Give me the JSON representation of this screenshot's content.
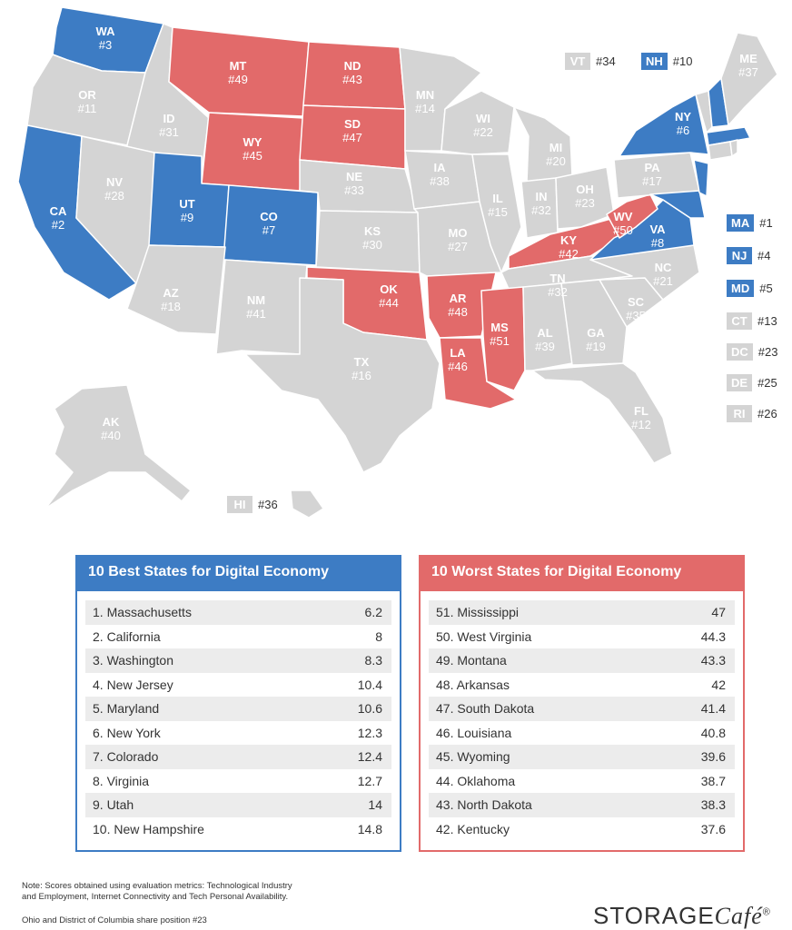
{
  "colors": {
    "best": "#3d7cc4",
    "worst": "#e26a6a",
    "neutral": "#d4d4d4"
  },
  "map": {
    "states": [
      {
        "abbr": "WA",
        "rank": "#3",
        "group": "best"
      },
      {
        "abbr": "OR",
        "rank": "#11",
        "group": "neutral"
      },
      {
        "abbr": "CA",
        "rank": "#2",
        "group": "best"
      },
      {
        "abbr": "ID",
        "rank": "#31",
        "group": "neutral"
      },
      {
        "abbr": "NV",
        "rank": "#28",
        "group": "neutral"
      },
      {
        "abbr": "MT",
        "rank": "#49",
        "group": "worst"
      },
      {
        "abbr": "WY",
        "rank": "#45",
        "group": "worst"
      },
      {
        "abbr": "UT",
        "rank": "#9",
        "group": "best"
      },
      {
        "abbr": "CO",
        "rank": "#7",
        "group": "best"
      },
      {
        "abbr": "AZ",
        "rank": "#18",
        "group": "neutral"
      },
      {
        "abbr": "NM",
        "rank": "#41",
        "group": "neutral"
      },
      {
        "abbr": "ND",
        "rank": "#43",
        "group": "worst"
      },
      {
        "abbr": "SD",
        "rank": "#47",
        "group": "worst"
      },
      {
        "abbr": "NE",
        "rank": "#33",
        "group": "neutral"
      },
      {
        "abbr": "KS",
        "rank": "#30",
        "group": "neutral"
      },
      {
        "abbr": "OK",
        "rank": "#44",
        "group": "worst"
      },
      {
        "abbr": "TX",
        "rank": "#16",
        "group": "neutral"
      },
      {
        "abbr": "MN",
        "rank": "#14",
        "group": "neutral"
      },
      {
        "abbr": "IA",
        "rank": "#38",
        "group": "neutral"
      },
      {
        "abbr": "MO",
        "rank": "#27",
        "group": "neutral"
      },
      {
        "abbr": "AR",
        "rank": "#48",
        "group": "worst"
      },
      {
        "abbr": "LA",
        "rank": "#46",
        "group": "worst"
      },
      {
        "abbr": "WI",
        "rank": "#22",
        "group": "neutral"
      },
      {
        "abbr": "IL",
        "rank": "#15",
        "group": "neutral"
      },
      {
        "abbr": "MI",
        "rank": "#20",
        "group": "neutral"
      },
      {
        "abbr": "IN",
        "rank": "#32",
        "group": "neutral"
      },
      {
        "abbr": "OH",
        "rank": "#23",
        "group": "neutral"
      },
      {
        "abbr": "KY",
        "rank": "#42",
        "group": "worst"
      },
      {
        "abbr": "TN",
        "rank": "#32",
        "group": "neutral"
      },
      {
        "abbr": "MS",
        "rank": "#51",
        "group": "worst"
      },
      {
        "abbr": "AL",
        "rank": "#39",
        "group": "neutral"
      },
      {
        "abbr": "GA",
        "rank": "#19",
        "group": "neutral"
      },
      {
        "abbr": "FL",
        "rank": "#12",
        "group": "neutral"
      },
      {
        "abbr": "SC",
        "rank": "#35",
        "group": "neutral"
      },
      {
        "abbr": "NC",
        "rank": "#21",
        "group": "neutral"
      },
      {
        "abbr": "VA",
        "rank": "#8",
        "group": "best"
      },
      {
        "abbr": "WV",
        "rank": "#50",
        "group": "worst"
      },
      {
        "abbr": "PA",
        "rank": "#17",
        "group": "neutral"
      },
      {
        "abbr": "NY",
        "rank": "#6",
        "group": "best"
      },
      {
        "abbr": "ME",
        "rank": "#37",
        "group": "neutral"
      },
      {
        "abbr": "AK",
        "rank": "#40",
        "group": "neutral"
      }
    ],
    "badges": [
      {
        "abbr": "VT",
        "rank": "#34",
        "group": "neutral"
      },
      {
        "abbr": "NH",
        "rank": "#10",
        "group": "best"
      },
      {
        "abbr": "MA",
        "rank": "#1",
        "group": "best"
      },
      {
        "abbr": "NJ",
        "rank": "#4",
        "group": "best"
      },
      {
        "abbr": "MD",
        "rank": "#5",
        "group": "best"
      },
      {
        "abbr": "CT",
        "rank": "#13",
        "group": "neutral"
      },
      {
        "abbr": "DC",
        "rank": "#23",
        "group": "neutral"
      },
      {
        "abbr": "DE",
        "rank": "#25",
        "group": "neutral"
      },
      {
        "abbr": "RI",
        "rank": "#26",
        "group": "neutral"
      },
      {
        "abbr": "HI",
        "rank": "#36",
        "group": "neutral"
      }
    ]
  },
  "best_table": {
    "title": "10 Best States for Digital Economy",
    "rows": [
      {
        "name": "1. Massachusetts",
        "score": "6.2"
      },
      {
        "name": "2. California",
        "score": "8"
      },
      {
        "name": "3. Washington",
        "score": "8.3"
      },
      {
        "name": "4. New Jersey",
        "score": "10.4"
      },
      {
        "name": "5. Maryland",
        "score": "10.6"
      },
      {
        "name": "6. New York",
        "score": "12.3"
      },
      {
        "name": "7. Colorado",
        "score": "12.4"
      },
      {
        "name": "8. Virginia",
        "score": "12.7"
      },
      {
        "name": "9. Utah",
        "score": "14"
      },
      {
        "name": "10. New Hampshire",
        "score": "14.8"
      }
    ]
  },
  "worst_table": {
    "title": "10 Worst States for Digital Economy",
    "rows": [
      {
        "name": "51. Mississippi",
        "score": "47"
      },
      {
        "name": "50. West Virginia",
        "score": "44.3"
      },
      {
        "name": "49. Montana",
        "score": "43.3"
      },
      {
        "name": "48. Arkansas",
        "score": "42"
      },
      {
        "name": "47. South Dakota",
        "score": "41.4"
      },
      {
        "name": "46. Louisiana",
        "score": "40.8"
      },
      {
        "name": "45. Wyoming",
        "score": "39.6"
      },
      {
        "name": "44. Oklahoma",
        "score": "38.7"
      },
      {
        "name": "43. North Dakota",
        "score": "38.3"
      },
      {
        "name": "42. Kentucky",
        "score": "37.6"
      }
    ]
  },
  "footer": {
    "note_line1": "Note: Scores obtained using evaluation metrics: Technological Industry",
    "note_line2": "and Employment, Internet Connectivity and Tech Personal Availability.",
    "note_line3": "Ohio and District of Columbia share position #23",
    "brand_main": "STORAGE",
    "brand_cafe": "Café",
    "brand_reg": "®"
  }
}
